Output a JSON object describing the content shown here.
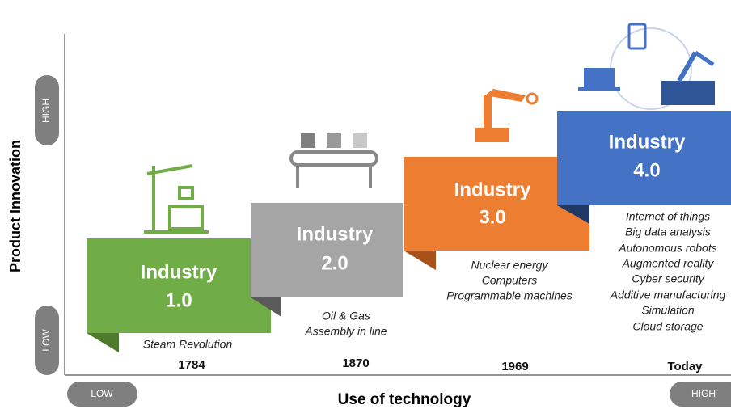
{
  "y_axis": {
    "label": "Product Innovation",
    "high": "HIGH",
    "low": "LOW"
  },
  "x_axis": {
    "label": "Use of technology",
    "low": "LOW",
    "high": "HIGH"
  },
  "stages": [
    {
      "name": "Industry",
      "version": "1.0",
      "items": [
        "Steam Revolution"
      ],
      "year": "1784"
    },
    {
      "name": "Industry",
      "version": "2.0",
      "items": [
        "Oil & Gas",
        "Assembly in line"
      ],
      "year": "1870"
    },
    {
      "name": "Industry",
      "version": "3.0",
      "items": [
        "Nuclear energy",
        "Computers",
        "Programmable machines"
      ],
      "year": "1969"
    },
    {
      "name": "Industry",
      "version": "4.0",
      "items": [
        "Internet of things",
        "Big data analysis",
        "Autonomous robots",
        "Augmented reality",
        "Cyber security",
        "Additive manufacturing",
        "Simulation",
        "Cloud storage"
      ],
      "year": "Today"
    }
  ]
}
